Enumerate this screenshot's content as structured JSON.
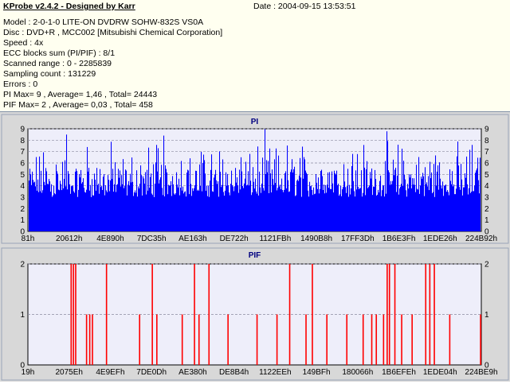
{
  "header": {
    "title": "KProbe v2.4.2 - Designed by Karr",
    "date": "Date : 2004-09-15 13:53:51",
    "lines": [
      "Model : 2-0-1-0 LITE-ON DVDRW SOHW-832S  VS0A",
      "Disc : DVD+R , MCC002 [Mitsubishi Chemical Corporation]",
      "Speed : 4x",
      "ECC blocks sum (PI/PIF) : 8/1",
      "Scanned range : 0 - 2285839",
      "Sampling count : 131229",
      "Errors : 0",
      "PI Max= 9 , Average= 1,46 , Total= 24443",
      "PIF Max= 2 , Average= 0,03 , Total= 458"
    ]
  },
  "colors": {
    "pi": "#0000ff",
    "pif": "#ff0000",
    "plot_bg": "#eeeefa",
    "panel_bg": "#d8d8d8",
    "grid": "#8a8aa0"
  },
  "chart_data": [
    {
      "type": "bar",
      "title": "PI",
      "ylim": [
        0,
        9
      ],
      "yticks": [
        0,
        1,
        2,
        3,
        4,
        5,
        6,
        7,
        8,
        9
      ],
      "xtick_labels": [
        "81h",
        "20612h",
        "4E890h",
        "7DC35h",
        "AE163h",
        "DE722h",
        "1121FBh",
        "1490B8h",
        "17FF3Dh",
        "1B6E3Fh",
        "1EDE26h",
        "224B92h"
      ],
      "baseline_range": [
        3,
        4
      ],
      "peak_max": 9,
      "average": 1.46,
      "grid": true
    },
    {
      "type": "bar",
      "title": "PIF",
      "ylim": [
        0,
        2
      ],
      "yticks": [
        0,
        1,
        2
      ],
      "xtick_labels": [
        "19h",
        "2075Eh",
        "4E9EFh",
        "7DE0Dh",
        "AE380h",
        "DE8B4h",
        "1122EEh",
        "149BFh",
        "180066h",
        "1B6EFEh",
        "1EDE04h",
        "224BE9h"
      ],
      "spikes_value_2_at_fraction": [
        0.094,
        0.099,
        0.104,
        0.172,
        0.273,
        0.366,
        0.398,
        0.576,
        0.626,
        0.791,
        0.796,
        0.808,
        0.876,
        0.885,
        0.895
      ],
      "spikes_value_1_at_fraction": [
        0.128,
        0.135,
        0.141,
        0.245,
        0.283,
        0.339,
        0.376,
        0.44,
        0.504,
        0.548,
        0.612,
        0.658,
        0.702,
        0.738,
        0.757,
        0.767,
        0.783,
        0.823,
        0.846,
        0.929,
        0.997
      ],
      "grid": true
    }
  ]
}
